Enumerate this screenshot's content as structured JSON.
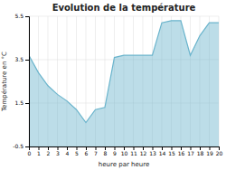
{
  "chart_data": {
    "type": "area",
    "title": "Evolution de la température",
    "x_label": "heure par heure",
    "y_label": "Température en °C",
    "x": [
      0,
      1,
      2,
      3,
      4,
      5,
      6,
      7,
      8,
      9,
      10,
      11,
      12,
      13,
      14,
      15,
      16,
      17,
      18,
      19,
      20
    ],
    "values": [
      3.7,
      2.9,
      2.3,
      1.9,
      1.6,
      1.2,
      0.6,
      1.2,
      1.3,
      3.6,
      3.7,
      3.7,
      3.7,
      3.7,
      5.2,
      5.3,
      5.3,
      3.7,
      4.6,
      5.2,
      5.2
    ],
    "color": "#6ab4cc",
    "xlim": [
      0,
      20
    ],
    "ylim": [
      -0.5,
      5.5
    ],
    "xticks": [
      0,
      1,
      2,
      3,
      4,
      5,
      6,
      7,
      8,
      9,
      10,
      11,
      12,
      13,
      14,
      15,
      16,
      17,
      18,
      19,
      20
    ],
    "yticks": [
      -0.5,
      1.5,
      3.5,
      5.5
    ],
    "grid": true
  }
}
